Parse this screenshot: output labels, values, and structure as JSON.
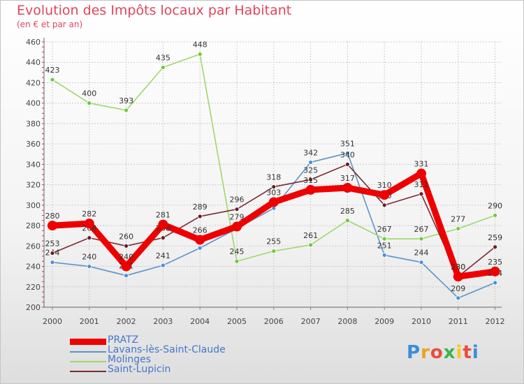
{
  "title": "Evolution des Impôts locaux par Habitant",
  "subtitle": "(en € et par an)",
  "logo": {
    "letters": [
      "P",
      "r",
      "o",
      "x",
      "i",
      "t",
      "i"
    ],
    "colors": [
      "#3a8ed8",
      "#f0a020",
      "#e84c3d",
      "#3ab54a",
      "#f7c81e",
      "#e84c3d",
      "#3a8ed8"
    ]
  },
  "chart_data": {
    "type": "line",
    "title": "Evolution des Impôts locaux par Habitant",
    "subtitle": "(en € et par an)",
    "xlabel": "",
    "ylabel": "",
    "ylim": [
      200,
      460
    ],
    "yticks": [
      200,
      220,
      240,
      260,
      280,
      300,
      320,
      340,
      360,
      380,
      400,
      420,
      440,
      460
    ],
    "categories": [
      "2000",
      "2001",
      "2002",
      "2003",
      "2004",
      "2005",
      "2006",
      "2007",
      "2008",
      "2009",
      "2010",
      "2011",
      "2012"
    ],
    "grid": true,
    "legend_position": "bottom-left",
    "series": [
      {
        "name": "Lavans-lès-Saint-Claude",
        "color": "#5b94c8",
        "point_color": "#4a8fd6",
        "values": [
          244,
          240,
          231,
          241,
          258,
          277,
          297,
          342,
          351,
          251,
          244,
          209,
          224
        ],
        "labels": [
          true,
          true,
          true,
          true,
          false,
          false,
          false,
          true,
          true,
          true,
          true,
          true,
          true
        ]
      },
      {
        "name": "Molinges",
        "color": "#9ed86a",
        "point_color": "#6cc93a",
        "values": [
          423,
          400,
          393,
          435,
          448,
          245,
          255,
          261,
          285,
          267,
          267,
          277,
          290
        ],
        "labels": [
          true,
          true,
          true,
          true,
          true,
          true,
          true,
          true,
          true,
          true,
          true,
          true,
          true
        ]
      },
      {
        "name": "Saint-Lupicin",
        "color": "#7b2a32",
        "point_color": "#6a1c24",
        "values": [
          253,
          268,
          260,
          268,
          289,
          296,
          318,
          325,
          340,
          300,
          311,
          230,
          259
        ],
        "labels": [
          true,
          true,
          true,
          true,
          true,
          true,
          true,
          true,
          true,
          true,
          true,
          true,
          true
        ]
      },
      {
        "name": "PRATZ",
        "color": "#ee0000",
        "point_color": "#ee0000",
        "values": [
          280,
          282,
          240,
          281,
          266,
          279,
          303,
          315,
          317,
          310,
          331,
          230,
          235
        ],
        "labels": [
          true,
          true,
          true,
          true,
          true,
          true,
          true,
          true,
          true,
          true,
          true,
          true,
          true
        ]
      }
    ]
  }
}
